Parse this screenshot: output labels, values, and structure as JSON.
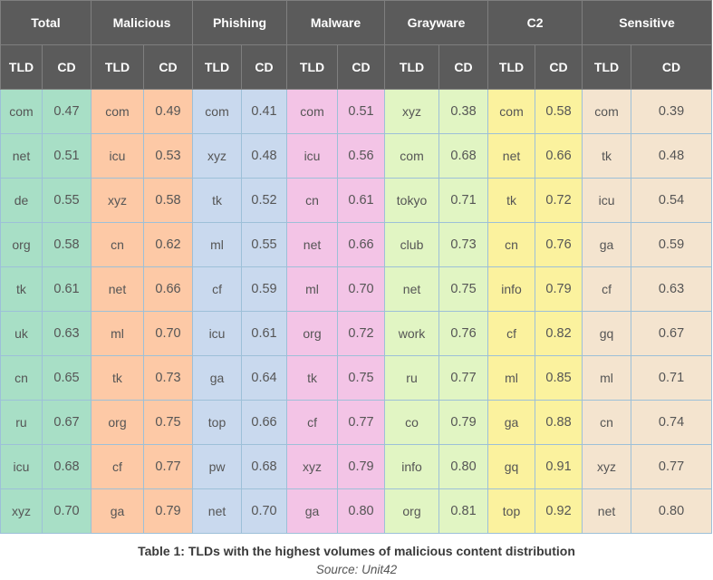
{
  "table": {
    "groups": [
      {
        "label": "Total",
        "color": "#a8dfc6"
      },
      {
        "label": "Malicious",
        "color": "#fdc9a6"
      },
      {
        "label": "Phishing",
        "color": "#c9d9ee"
      },
      {
        "label": "Malware",
        "color": "#f3c4e6"
      },
      {
        "label": "Grayware",
        "color": "#e1f5c3"
      },
      {
        "label": "C2",
        "color": "#fbf29e"
      },
      {
        "label": "Sensitive",
        "color": "#f4e4cf"
      }
    ],
    "sub_headers": {
      "tld": "TLD",
      "cd": "CD"
    },
    "rows": [
      [
        [
          "com",
          "0.47"
        ],
        [
          "com",
          "0.49"
        ],
        [
          "com",
          "0.41"
        ],
        [
          "com",
          "0.51"
        ],
        [
          "xyz",
          "0.38"
        ],
        [
          "com",
          "0.58"
        ],
        [
          "com",
          "0.39"
        ]
      ],
      [
        [
          "net",
          "0.51"
        ],
        [
          "icu",
          "0.53"
        ],
        [
          "xyz",
          "0.48"
        ],
        [
          "icu",
          "0.56"
        ],
        [
          "com",
          "0.68"
        ],
        [
          "net",
          "0.66"
        ],
        [
          "tk",
          "0.48"
        ]
      ],
      [
        [
          "de",
          "0.55"
        ],
        [
          "xyz",
          "0.58"
        ],
        [
          "tk",
          "0.52"
        ],
        [
          "cn",
          "0.61"
        ],
        [
          "tokyo",
          "0.71"
        ],
        [
          "tk",
          "0.72"
        ],
        [
          "icu",
          "0.54"
        ]
      ],
      [
        [
          "org",
          "0.58"
        ],
        [
          "cn",
          "0.62"
        ],
        [
          "ml",
          "0.55"
        ],
        [
          "net",
          "0.66"
        ],
        [
          "club",
          "0.73"
        ],
        [
          "cn",
          "0.76"
        ],
        [
          "ga",
          "0.59"
        ]
      ],
      [
        [
          "tk",
          "0.61"
        ],
        [
          "net",
          "0.66"
        ],
        [
          "cf",
          "0.59"
        ],
        [
          "ml",
          "0.70"
        ],
        [
          "net",
          "0.75"
        ],
        [
          "info",
          "0.79"
        ],
        [
          "cf",
          "0.63"
        ]
      ],
      [
        [
          "uk",
          "0.63"
        ],
        [
          "ml",
          "0.70"
        ],
        [
          "icu",
          "0.61"
        ],
        [
          "org",
          "0.72"
        ],
        [
          "work",
          "0.76"
        ],
        [
          "cf",
          "0.82"
        ],
        [
          "gq",
          "0.67"
        ]
      ],
      [
        [
          "cn",
          "0.65"
        ],
        [
          "tk",
          "0.73"
        ],
        [
          "ga",
          "0.64"
        ],
        [
          "tk",
          "0.75"
        ],
        [
          "ru",
          "0.77"
        ],
        [
          "ml",
          "0.85"
        ],
        [
          "ml",
          "0.71"
        ]
      ],
      [
        [
          "ru",
          "0.67"
        ],
        [
          "org",
          "0.75"
        ],
        [
          "top",
          "0.66"
        ],
        [
          "cf",
          "0.77"
        ],
        [
          "co",
          "0.79"
        ],
        [
          "ga",
          "0.88"
        ],
        [
          "cn",
          "0.74"
        ]
      ],
      [
        [
          "icu",
          "0.68"
        ],
        [
          "cf",
          "0.77"
        ],
        [
          "pw",
          "0.68"
        ],
        [
          "xyz",
          "0.79"
        ],
        [
          "info",
          "0.80"
        ],
        [
          "gq",
          "0.91"
        ],
        [
          "xyz",
          "0.77"
        ]
      ],
      [
        [
          "xyz",
          "0.70"
        ],
        [
          "ga",
          "0.79"
        ],
        [
          "net",
          "0.70"
        ],
        [
          "ga",
          "0.80"
        ],
        [
          "org",
          "0.81"
        ],
        [
          "top",
          "0.92"
        ],
        [
          "net",
          "0.80"
        ]
      ]
    ]
  },
  "caption": "Table 1: TLDs with the highest volumes of malicious content distribution",
  "source": "Source: Unit42"
}
